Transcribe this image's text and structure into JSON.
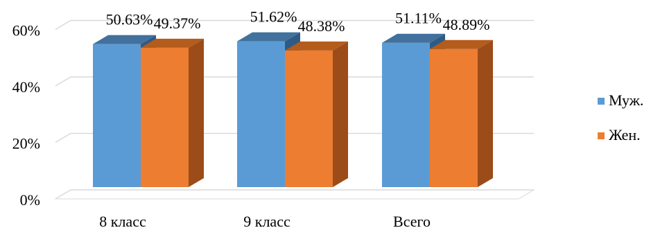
{
  "chart_data": {
    "type": "bar",
    "title": "",
    "xlabel": "",
    "ylabel": "",
    "categories": [
      "8 класс",
      "9 класс",
      "Всего"
    ],
    "series": [
      {
        "name": "Муж.",
        "values": [
          50.63,
          51.62,
          51.11
        ],
        "labels": [
          "50.63%",
          "51.62%",
          "51.11%"
        ]
      },
      {
        "name": "Жен.",
        "values": [
          49.37,
          48.38,
          48.89
        ],
        "labels": [
          "49.37%",
          "48.38%",
          "48.89%"
        ]
      }
    ],
    "y_ticks": [
      0,
      20,
      40,
      60
    ],
    "y_tick_labels": [
      "0%",
      "20%",
      "40%",
      "60%"
    ],
    "ylim": [
      0,
      70
    ],
    "three_d": true,
    "grid": true,
    "legend_position": "right",
    "colors": {
      "series": [
        "#5b9bd5",
        "#ed7d31"
      ],
      "series_top": [
        "#41719c",
        "#b45c1c"
      ],
      "series_side": [
        "#2e5b86",
        "#9b4c18"
      ],
      "grid": "#d9d9d9"
    }
  }
}
